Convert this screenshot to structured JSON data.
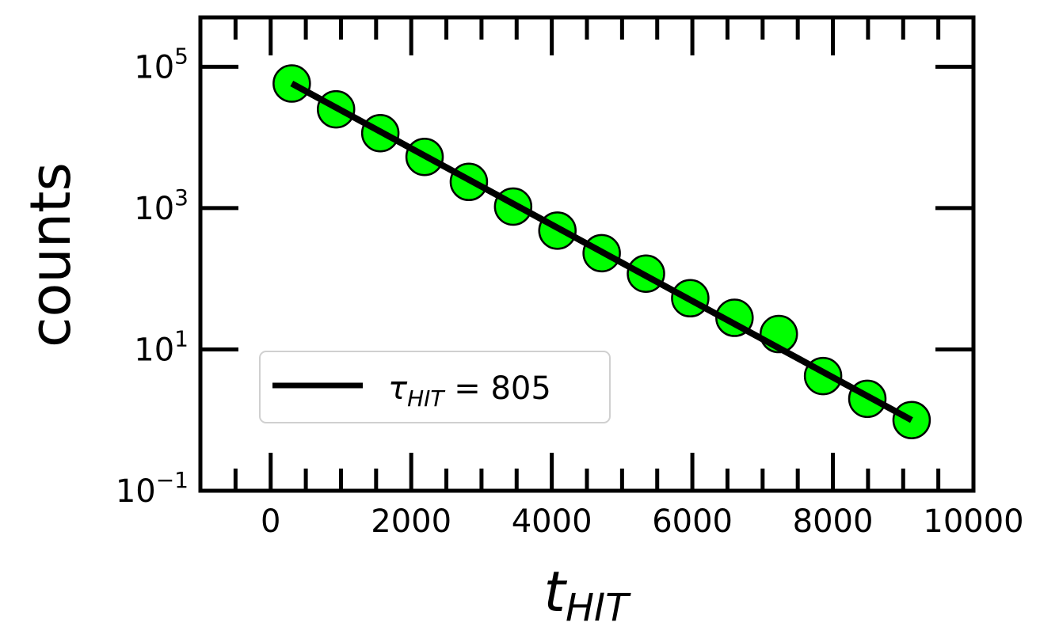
{
  "chart_data": {
    "type": "scatter",
    "xlabel": {
      "main": "t",
      "sub": "HIT"
    },
    "ylabel": "counts",
    "xlim": [
      -1000,
      10000
    ],
    "ylim": [
      0.1,
      500000
    ],
    "yscale": "log",
    "grid": false,
    "legend_position": "lower-left",
    "x_ticks": [
      {
        "value": 0,
        "label": "0"
      },
      {
        "value": 2000,
        "label": "2000"
      },
      {
        "value": 4000,
        "label": "4000"
      },
      {
        "value": 6000,
        "label": "6000"
      },
      {
        "value": 8000,
        "label": "8000"
      },
      {
        "value": 10000,
        "label": "10000"
      }
    ],
    "y_ticks": [
      {
        "value": 0.1,
        "base": "10",
        "exp": "−1"
      },
      {
        "value": 10,
        "base": "10",
        "exp": "1"
      },
      {
        "value": 1000,
        "base": "10",
        "exp": "3"
      },
      {
        "value": 100000,
        "base": "10",
        "exp": "5"
      }
    ],
    "series": [
      {
        "kind": "points",
        "color": "#00ff00",
        "edge_color": "#000000",
        "x": [
          300,
          930,
          1560,
          2190,
          2820,
          3450,
          4080,
          4710,
          5340,
          5970,
          6600,
          7230,
          7860,
          8490,
          9120
        ],
        "y": [
          58000,
          25000,
          11500,
          5300,
          2350,
          1050,
          480,
          230,
          118,
          53,
          28,
          16.5,
          4.2,
          2.0,
          1.0
        ]
      },
      {
        "kind": "line",
        "name_parts": {
          "symbol": "τ",
          "sub": "HIT",
          "rest": " = 805"
        },
        "color": "#000000",
        "x": [
          300,
          9120
        ],
        "y": [
          58000,
          1.0
        ]
      }
    ]
  }
}
